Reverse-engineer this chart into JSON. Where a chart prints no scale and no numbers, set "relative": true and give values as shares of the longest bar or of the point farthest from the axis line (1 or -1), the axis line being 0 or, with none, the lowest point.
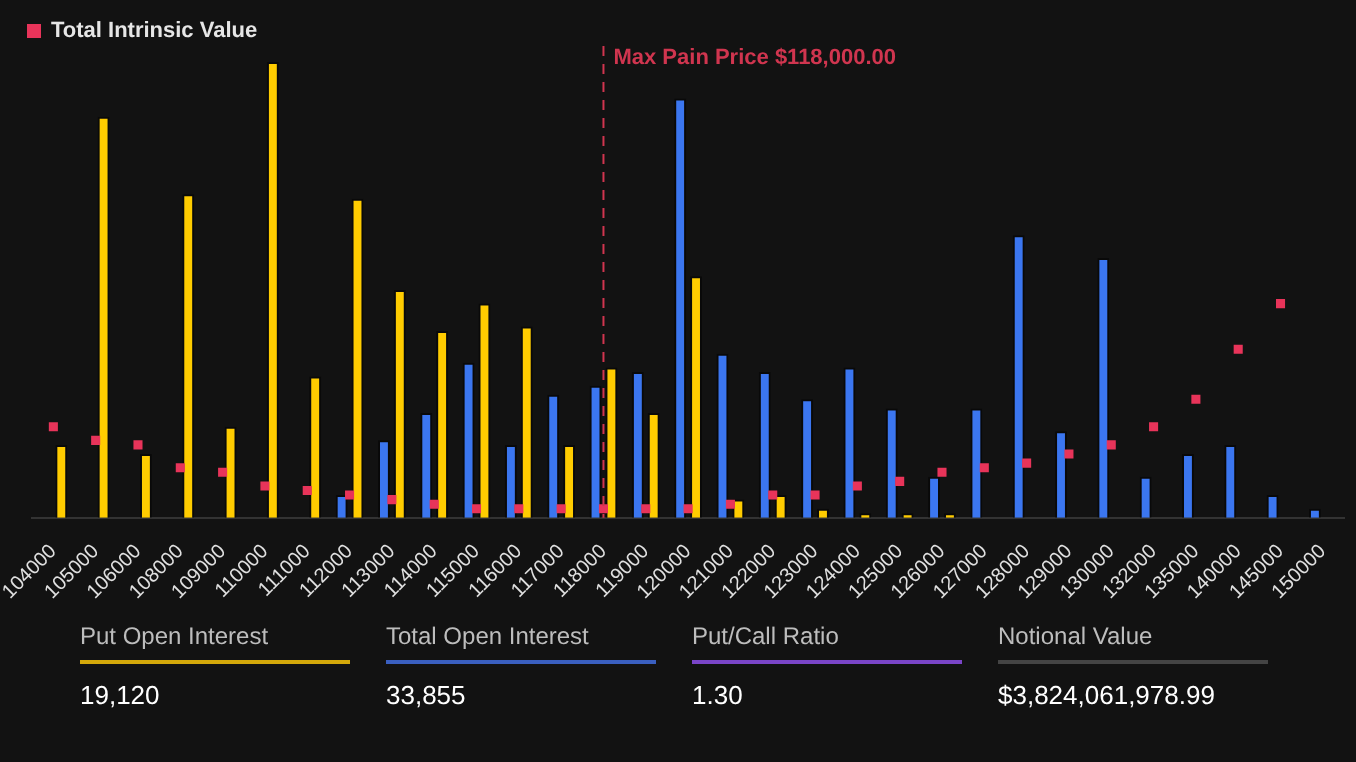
{
  "chart_data": [
    {
      "type": "bar",
      "relative": true,
      "legend": "top left",
      "categories": [
        "104000",
        "105000",
        "106000",
        "108000",
        "109000",
        "110000",
        "111000",
        "112000",
        "113000",
        "114000",
        "115000",
        "116000",
        "117000",
        "118000",
        "119000",
        "120000",
        "121000",
        "122000",
        "123000",
        "124000",
        "125000",
        "126000",
        "127000",
        "128000",
        "129000",
        "130000",
        "132000",
        "135000",
        "140000",
        "145000",
        "150000"
      ],
      "series": [
        {
          "color": "#3b76f0",
          "values": [
            0,
            0,
            0,
            0,
            0,
            0,
            0,
            0.05,
            0.17,
            0.23,
            0.34,
            0.16,
            0.27,
            0.29,
            0.32,
            0.92,
            0.36,
            0.32,
            0.26,
            0.33,
            0.24,
            0.09,
            0.24,
            0.62,
            0.19,
            0.57,
            0.09,
            0.14,
            0.16,
            0.05,
            0.02
          ]
        },
        {
          "color": "#ffcc00",
          "values": [
            0.16,
            0.88,
            0.14,
            0.71,
            0.2,
            1,
            0.31,
            0.7,
            0.5,
            0.41,
            0.47,
            0.42,
            0.16,
            0.33,
            0.23,
            0.53,
            0.04,
            0.05,
            0.02,
            0.01,
            0.01,
            0.01,
            0,
            0,
            0,
            0,
            0,
            0,
            0,
            0,
            0
          ]
        },
        {
          "name": "Total Intrinsic Value",
          "type": "scatter",
          "marker": "square",
          "color": "#e8345a",
          "values": [
            0.2,
            0.17,
            0.16,
            0.11,
            0.1,
            0.07,
            0.06,
            0.05,
            0.04,
            0.03,
            0.02,
            0.02,
            0.02,
            0.02,
            0.02,
            0.02,
            0.03,
            0.05,
            0.05,
            0.07,
            0.08,
            0.1,
            0.11,
            0.12,
            0.14,
            0.16,
            0.2,
            0.26,
            0.37,
            0.47,
            null
          ]
        }
      ],
      "ref_lines": [
        {
          "axis": "x",
          "value": "118000",
          "label": "Max Pain Price $118,000.00",
          "color": "#d0354f",
          "line_style": "dashed"
        }
      ]
    },
    {
      "type": "other",
      "annotations": [
        "Put Open Interest",
        "19,120",
        "Total Open Interest",
        "33,855",
        "Put/Call Ratio",
        "1.30",
        "Notional Value",
        "$3,824,061,978.99"
      ]
    }
  ]
}
